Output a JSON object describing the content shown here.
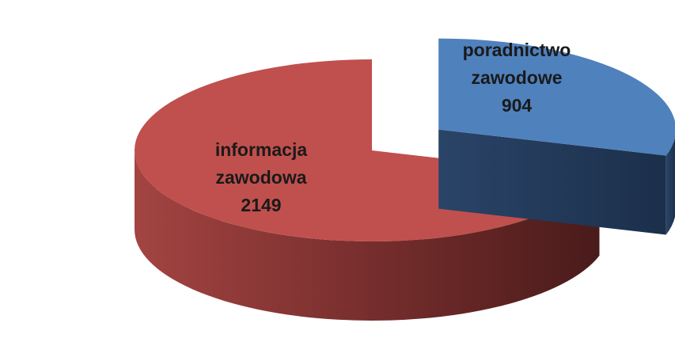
{
  "chart_data": {
    "type": "pie",
    "categories": [
      "poradnictwo zawodowe",
      "informacja zawodowa"
    ],
    "values": [
      904,
      2149
    ],
    "colors": [
      "#4f81bd",
      "#c0504d"
    ]
  }
}
